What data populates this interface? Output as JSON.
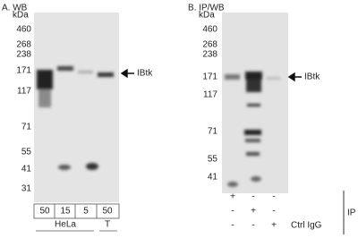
{
  "panel_a": {
    "title": "A. WB",
    "unit": "kDa",
    "markers": [
      "460",
      "268",
      "238",
      "171",
      "117",
      "71",
      "55",
      "41",
      "31"
    ],
    "target": "IBtk",
    "lanes": [
      "50",
      "15",
      "5",
      "50"
    ],
    "groups": [
      "HeLa",
      "T"
    ]
  },
  "panel_b": {
    "title": "B. IP/WB",
    "unit": "kDa",
    "markers": [
      "460",
      "268",
      "238",
      "171",
      "117",
      "71",
      "55",
      "41"
    ],
    "target": "IBtk",
    "rows": [
      [
        "+",
        "-",
        "-"
      ],
      [
        "-",
        "+",
        "-"
      ],
      [
        "-",
        "-",
        "+"
      ]
    ],
    "row_label": "Ctrl IgG",
    "side_label": "IP"
  }
}
